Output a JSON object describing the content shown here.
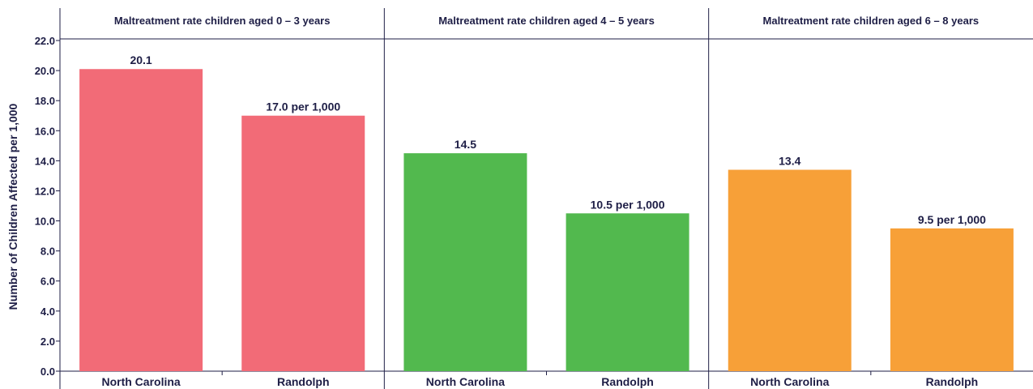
{
  "chart_data": {
    "type": "bar",
    "ylabel": "Number of Children Affected per 1,000",
    "ylim": [
      0,
      22
    ],
    "yticks": [
      "0.0",
      "2.0",
      "4.0",
      "6.0",
      "8.0",
      "10.0",
      "12.0",
      "14.0",
      "16.0",
      "18.0",
      "20.0",
      "22.0"
    ],
    "grid": false,
    "panels": [
      {
        "title": "Maltreatment rate children aged 0 – 3 years",
        "color": "#f26b77",
        "categories": [
          "North Carolina",
          "Randolph"
        ],
        "values": [
          20.1,
          17.0
        ],
        "labels": [
          "20.1",
          "17.0 per 1,000"
        ]
      },
      {
        "title": "Maltreatment rate children aged 4 – 5 years",
        "color": "#52b94e",
        "categories": [
          "North Carolina",
          "Randolph"
        ],
        "values": [
          14.5,
          10.5
        ],
        "labels": [
          "14.5",
          "10.5 per 1,000"
        ]
      },
      {
        "title": "Maltreatment rate children aged 6 – 8 years",
        "color": "#f7a038",
        "categories": [
          "North Carolina",
          "Randolph"
        ],
        "values": [
          13.4,
          9.5
        ],
        "labels": [
          "13.4",
          "9.5 per 1,000"
        ]
      }
    ]
  }
}
